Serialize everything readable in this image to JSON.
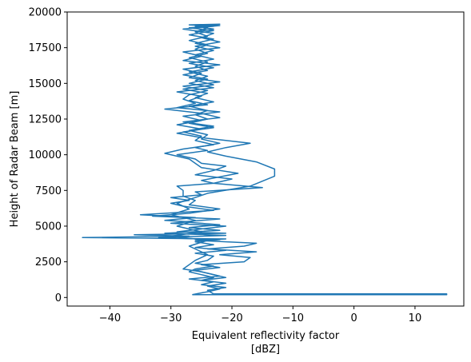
{
  "chart_data": {
    "type": "line",
    "title": "",
    "xlabel": "Equivalent reflectivity factor",
    "xlabel_unit": "[dBZ]",
    "ylabel": "Height of Radar Beam [m]",
    "xlim": [
      -47,
      18
    ],
    "ylim": [
      -600,
      20000
    ],
    "xticks": [
      -40,
      -30,
      -20,
      -10,
      0,
      10
    ],
    "yticks": [
      0,
      2500,
      5000,
      7500,
      10000,
      12500,
      15000,
      17500,
      20000
    ],
    "grid": false,
    "legend": "none",
    "color": "#1f77b4",
    "series": [
      {
        "points": [
          [
            -26.5,
            200
          ],
          [
            15.2,
            200
          ],
          [
            15.2,
            250
          ],
          [
            -23,
            250
          ],
          [
            -24,
            500
          ],
          [
            -21,
            700
          ],
          [
            -25,
            900
          ],
          [
            -23,
            1100
          ],
          [
            -27,
            1300
          ],
          [
            -22,
            1500
          ],
          [
            -24,
            1700
          ],
          [
            -26,
            1900
          ],
          [
            -22,
            2100
          ],
          [
            -25,
            2300
          ],
          [
            -18,
            2500
          ],
          [
            -17,
            2800
          ],
          [
            -22,
            3000
          ],
          [
            -16,
            3200
          ],
          [
            -24,
            3400
          ],
          [
            -18,
            3600
          ],
          [
            -16,
            3800
          ],
          [
            -26,
            4000
          ],
          [
            -21,
            4100
          ],
          [
            -44.5,
            4200
          ],
          [
            -27,
            4300
          ],
          [
            -36,
            4400
          ],
          [
            -21,
            4500
          ],
          [
            -29,
            4600
          ],
          [
            -25,
            4800
          ],
          [
            -21,
            5000
          ],
          [
            -30,
            5200
          ],
          [
            -27,
            5300
          ],
          [
            -31,
            5400
          ],
          [
            -26,
            5600
          ],
          [
            -35,
            5800
          ],
          [
            -23,
            6100
          ],
          [
            -28,
            6400
          ],
          [
            -30,
            6600
          ],
          [
            -27,
            6800
          ],
          [
            -30,
            7000
          ],
          [
            -25,
            7200
          ],
          [
            -26,
            7400
          ],
          [
            -15,
            7700
          ],
          [
            -23,
            8000
          ],
          [
            -20,
            8300
          ],
          [
            -26,
            8600
          ],
          [
            -23,
            8900
          ],
          [
            -21,
            9200
          ],
          [
            -25,
            9400
          ],
          [
            -26,
            9700
          ],
          [
            -29,
            10000
          ],
          [
            -24,
            10300
          ],
          [
            -26,
            10500
          ],
          [
            -22,
            10800
          ],
          [
            -25,
            11100
          ],
          [
            -24,
            11400
          ],
          [
            -27,
            11700
          ],
          [
            -23,
            12000
          ],
          [
            -28,
            12300
          ],
          [
            -22,
            12600
          ],
          [
            -25,
            12900
          ],
          [
            -31,
            13200
          ],
          [
            -24,
            13500
          ],
          [
            -27,
            13800
          ],
          [
            -25,
            14100
          ],
          [
            -29,
            14400
          ],
          [
            -23,
            14700
          ],
          [
            -27,
            15000
          ],
          [
            -24,
            15300
          ],
          [
            -28,
            15600
          ],
          [
            -24,
            15900
          ],
          [
            -26,
            16200
          ],
          [
            -24,
            16500
          ],
          [
            -27,
            16800
          ],
          [
            -24,
            17100
          ],
          [
            -26,
            17400
          ],
          [
            -24,
            17700
          ],
          [
            -27,
            18000
          ],
          [
            -24,
            18300
          ],
          [
            -26,
            18600
          ],
          [
            -24,
            18900
          ],
          [
            -26,
            19100
          ]
        ]
      },
      {
        "points": [
          [
            -26.5,
            200
          ],
          [
            -24,
            400
          ],
          [
            -22,
            600
          ],
          [
            -24,
            800
          ],
          [
            -21,
            1000
          ],
          [
            -25,
            1200
          ],
          [
            -23,
            1400
          ],
          [
            -25,
            1600
          ],
          [
            -27,
            1800
          ],
          [
            -26,
            2000
          ],
          [
            -23,
            2200
          ],
          [
            -26,
            2400
          ],
          [
            -24,
            2600
          ],
          [
            -23,
            2900
          ],
          [
            -26,
            3100
          ],
          [
            -21,
            3300
          ],
          [
            -26,
            3500
          ],
          [
            -23,
            3700
          ],
          [
            -26,
            3900
          ],
          [
            -22,
            4050
          ],
          [
            -32,
            4200
          ],
          [
            -21,
            4350
          ],
          [
            -31,
            4500
          ],
          [
            -22,
            4700
          ],
          [
            -27,
            4900
          ],
          [
            -22,
            5100
          ],
          [
            -28,
            5300
          ],
          [
            -22,
            5500
          ],
          [
            -33,
            5700
          ],
          [
            -27,
            5900
          ],
          [
            -22,
            6200
          ],
          [
            -27,
            6500
          ],
          [
            -26,
            6800
          ],
          [
            -28,
            7100
          ],
          [
            -28,
            7500
          ],
          [
            -29,
            7800
          ],
          [
            -23,
            8000
          ],
          [
            -25,
            8200
          ],
          [
            -19,
            8700
          ],
          [
            -25,
            9100
          ],
          [
            -26,
            9400
          ],
          [
            -27,
            9700
          ],
          [
            -31,
            10100
          ],
          [
            -28,
            10400
          ],
          [
            -23,
            10700
          ],
          [
            -26,
            11000
          ],
          [
            -25,
            11300
          ],
          [
            -28,
            11600
          ],
          [
            -23,
            11900
          ],
          [
            -27,
            12200
          ],
          [
            -24,
            12500
          ],
          [
            -26,
            12800
          ],
          [
            -24,
            13100
          ],
          [
            -27,
            13400
          ],
          [
            -23,
            13700
          ],
          [
            -26,
            14000
          ],
          [
            -24,
            14300
          ],
          [
            -28,
            14600
          ],
          [
            -23,
            14900
          ],
          [
            -26,
            15200
          ],
          [
            -24,
            15500
          ],
          [
            -27,
            15800
          ],
          [
            -23,
            16100
          ],
          [
            -27,
            16400
          ],
          [
            -23,
            16700
          ],
          [
            -26,
            17000
          ],
          [
            -23,
            17300
          ],
          [
            -26,
            17600
          ],
          [
            -22,
            17900
          ],
          [
            -25,
            18200
          ],
          [
            -23,
            18500
          ],
          [
            -28,
            18800
          ],
          [
            -22,
            19050
          ],
          [
            -26,
            19100
          ]
        ]
      },
      {
        "points": [
          [
            -25,
            1200
          ],
          [
            -21,
            1400
          ],
          [
            -25,
            1800
          ],
          [
            -28,
            2000
          ],
          [
            -26,
            2600
          ],
          [
            -24,
            3000
          ],
          [
            -27,
            3600
          ],
          [
            -24,
            4000
          ],
          [
            -30,
            4300
          ],
          [
            -25,
            4600
          ],
          [
            -29,
            5000
          ],
          [
            -26,
            5400
          ],
          [
            -30,
            5800
          ],
          [
            -27,
            6200
          ],
          [
            -29,
            6600
          ],
          [
            -26,
            7000
          ],
          [
            -24,
            7300
          ],
          [
            -17,
            7800
          ],
          [
            -13,
            8500
          ],
          [
            -13,
            9000
          ],
          [
            -16,
            9500
          ],
          [
            -21,
            9900
          ],
          [
            -24,
            10200
          ],
          [
            -21,
            10500
          ],
          [
            -17,
            10800
          ],
          [
            -21,
            11000
          ],
          [
            -25,
            11200
          ],
          [
            -29,
            11500
          ],
          [
            -25,
            11800
          ],
          [
            -29,
            12100
          ],
          [
            -25,
            12400
          ],
          [
            -28,
            12700
          ],
          [
            -22,
            13000
          ],
          [
            -29,
            13300
          ],
          [
            -26,
            13600
          ],
          [
            -28,
            13900
          ],
          [
            -27,
            14200
          ],
          [
            -24,
            14500
          ],
          [
            -28,
            14800
          ],
          [
            -22,
            15100
          ],
          [
            -27,
            15400
          ],
          [
            -25,
            15700
          ],
          [
            -28,
            16000
          ],
          [
            -22,
            16300
          ],
          [
            -28,
            16600
          ],
          [
            -25,
            16900
          ],
          [
            -28,
            17200
          ],
          [
            -22,
            17500
          ],
          [
            -26,
            17800
          ],
          [
            -23,
            18100
          ],
          [
            -27,
            18400
          ],
          [
            -23,
            18700
          ],
          [
            -27,
            18900
          ],
          [
            -23,
            19000
          ],
          [
            -27,
            19100
          ],
          [
            -22,
            19150
          ],
          [
            -26,
            19000
          ],
          [
            -23,
            18800
          ],
          [
            -26,
            18600
          ]
        ]
      }
    ]
  }
}
